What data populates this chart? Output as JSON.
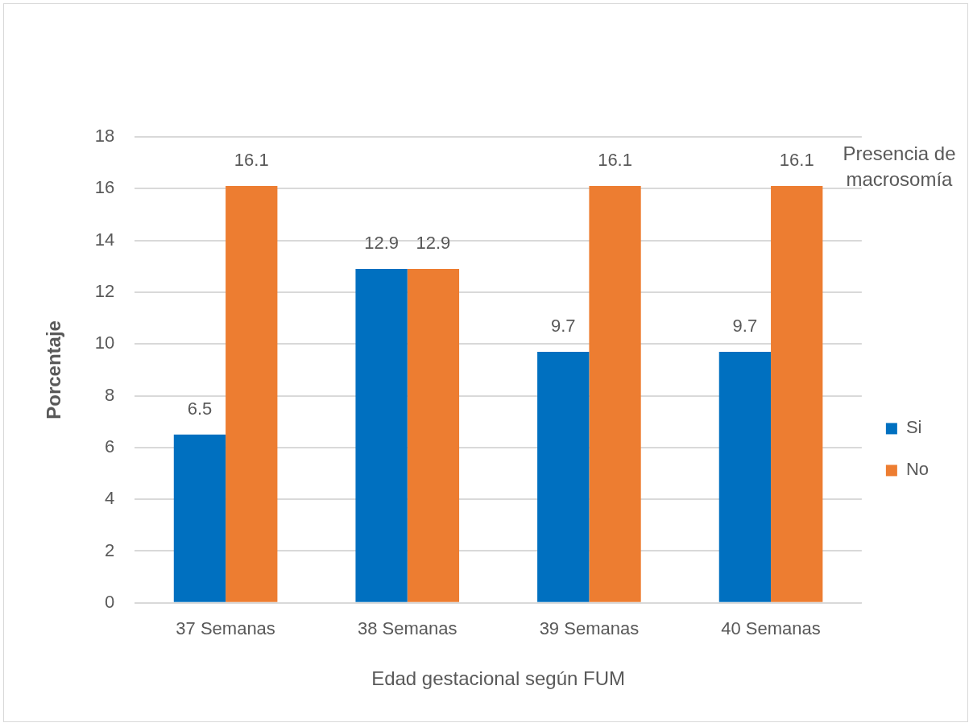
{
  "chart_data": {
    "type": "bar",
    "xlabel": "Edad gestacional según FUM",
    "ylabel": "Porcentaje",
    "legend_title": "Presencia de macrosomía",
    "categories": [
      "37 Semanas",
      "38 Semanas",
      "39 Semanas",
      "40 Semanas"
    ],
    "series": [
      {
        "name": "Si",
        "color": "#0070c0",
        "values": [
          6.5,
          12.9,
          9.7,
          9.7
        ]
      },
      {
        "name": "No",
        "color": "#ed7d31",
        "values": [
          16.1,
          12.9,
          16.1,
          16.1
        ]
      }
    ],
    "ylim": [
      0,
      18
    ],
    "yticks": [
      0,
      2,
      4,
      6,
      8,
      10,
      12,
      14,
      16,
      18
    ],
    "grid": "y",
    "legend": "right",
    "data_labels": true
  }
}
